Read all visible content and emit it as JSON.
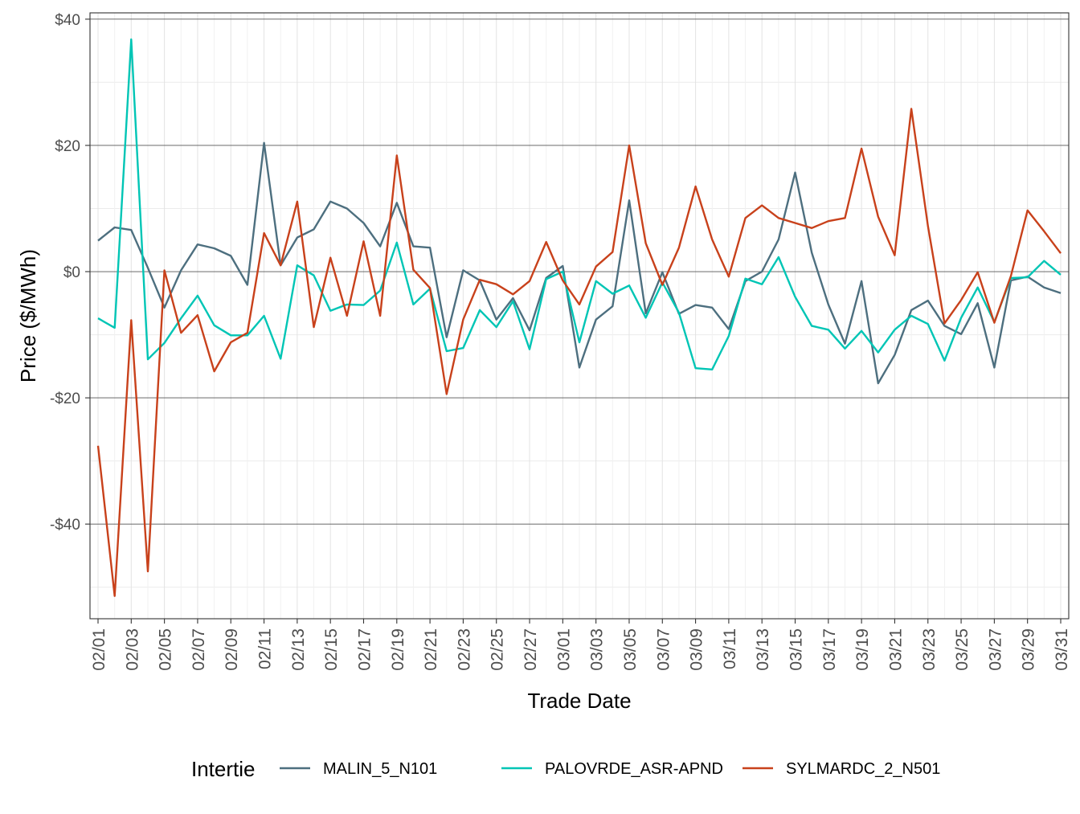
{
  "chart_data": {
    "type": "line",
    "title": "",
    "xlabel": "Trade Date",
    "ylabel": "Price ($/MWh)",
    "ylim": [
      -55,
      41
    ],
    "yticks": [
      -40,
      -20,
      0,
      20,
      40
    ],
    "ytick_labels": [
      "-$40",
      "-$20",
      "$0",
      "$20",
      "$40"
    ],
    "x": [
      "02/01",
      "02/02",
      "02/03",
      "02/04",
      "02/05",
      "02/06",
      "02/07",
      "02/08",
      "02/09",
      "02/10",
      "02/11",
      "02/12",
      "02/13",
      "02/14",
      "02/15",
      "02/16",
      "02/17",
      "02/18",
      "02/19",
      "02/20",
      "02/21",
      "02/22",
      "02/23",
      "02/24",
      "02/25",
      "02/26",
      "02/27",
      "02/28",
      "03/01",
      "03/02",
      "03/03",
      "03/04",
      "03/05",
      "03/06",
      "03/07",
      "03/08",
      "03/09",
      "03/10",
      "03/11",
      "03/12",
      "03/13",
      "03/14",
      "03/15",
      "03/16",
      "03/17",
      "03/18",
      "03/19",
      "03/20",
      "03/21",
      "03/22",
      "03/23",
      "03/24",
      "03/25",
      "03/26",
      "03/27",
      "03/28",
      "03/29",
      "03/30",
      "03/31"
    ],
    "xtick_labels": [
      "02/01",
      "02/03",
      "02/05",
      "02/07",
      "02/09",
      "02/11",
      "02/13",
      "02/15",
      "02/17",
      "02/19",
      "02/21",
      "02/23",
      "02/25",
      "02/27",
      "03/01",
      "03/03",
      "03/05",
      "03/07",
      "03/09",
      "03/11",
      "03/13",
      "03/15",
      "03/17",
      "03/19",
      "03/21",
      "03/23",
      "03/25",
      "03/27",
      "03/29",
      "03/31"
    ],
    "grid": true,
    "legend": {
      "title": "Intertie",
      "position": "bottom"
    },
    "series": [
      {
        "name": "MALIN_5_N101",
        "color": "#4d6f7f",
        "values": [
          4.9,
          7.0,
          6.6,
          0.6,
          -5.7,
          0.2,
          4.3,
          3.7,
          2.5,
          -2.1,
          20.4,
          1.0,
          5.4,
          6.7,
          11.1,
          10.0,
          7.7,
          4.0,
          10.9,
          4.0,
          3.8,
          -10.4,
          0.2,
          -1.4,
          -7.6,
          -4.2,
          -9.3,
          -1.0,
          0.9,
          -15.2,
          -7.6,
          -5.5,
          11.3,
          -6.6,
          -0.1,
          -6.7,
          -5.3,
          -5.7,
          -9.1,
          -1.5,
          0.0,
          5.1,
          15.7,
          3.0,
          -5.2,
          -11.4,
          -1.5,
          -17.7,
          -13.2,
          -6.1,
          -4.6,
          -8.6,
          -9.9,
          -5.0,
          -15.2,
          -1.4,
          -0.8,
          -2.5,
          -3.4
        ]
      },
      {
        "name": "PALOVRDE_ASR-APND",
        "color": "#00c5b5",
        "values": [
          -7.4,
          -8.9,
          36.8,
          -13.9,
          -11.3,
          -7.4,
          -3.8,
          -8.5,
          -10.1,
          -10.1,
          -7.0,
          -13.8,
          1.0,
          -0.6,
          -6.2,
          -5.2,
          -5.3,
          -3.0,
          4.6,
          -5.2,
          -2.7,
          -12.6,
          -12.1,
          -6.1,
          -8.8,
          -4.7,
          -12.3,
          -1.2,
          0.0,
          -11.2,
          -1.5,
          -3.5,
          -2.2,
          -7.3,
          -1.7,
          -6.5,
          -15.3,
          -15.5,
          -10.2,
          -1.1,
          -2.0,
          2.3,
          -4.0,
          -8.6,
          -9.2,
          -12.2,
          -9.4,
          -12.8,
          -9.2,
          -7.0,
          -8.3,
          -14.1,
          -7.3,
          -2.5,
          -8.0,
          -1.0,
          -0.9,
          1.7,
          -0.5
        ]
      },
      {
        "name": "SYLMARDC_2_N501",
        "color": "#c8411b",
        "values": [
          -27.6,
          -51.4,
          -7.7,
          -47.5,
          0.2,
          -9.7,
          -6.9,
          -15.8,
          -11.2,
          -9.7,
          6.1,
          1.0,
          11.1,
          -8.8,
          2.2,
          -7.0,
          4.8,
          -7.0,
          18.4,
          0.3,
          -2.6,
          -19.4,
          -7.6,
          -1.3,
          -2.0,
          -3.6,
          -1.5,
          4.7,
          -1.4,
          -5.2,
          0.8,
          3.1,
          20.0,
          4.5,
          -2.1,
          3.8,
          13.5,
          5.1,
          -0.8,
          8.5,
          10.5,
          8.5,
          7.7,
          6.9,
          8.0,
          8.5,
          19.5,
          8.7,
          2.6,
          25.8,
          7.2,
          -8.2,
          -4.5,
          -0.1,
          -8.1,
          -0.7,
          9.7,
          6.4,
          2.9
        ]
      }
    ]
  }
}
